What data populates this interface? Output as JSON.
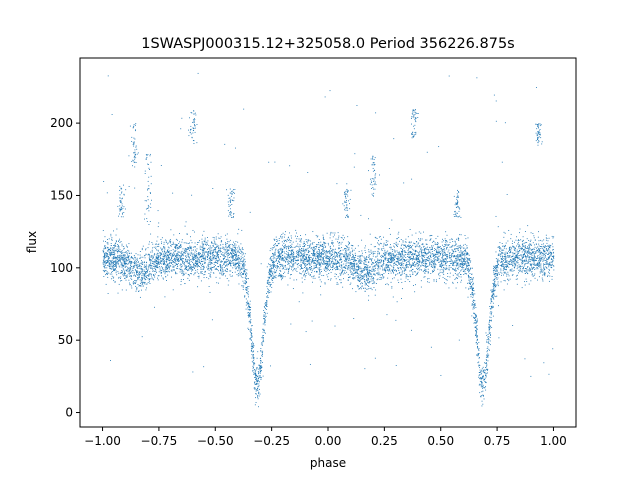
{
  "chart_data": {
    "type": "scatter",
    "title": "1SWASPJ000315.12+325058.0 Period 356226.875s",
    "xlabel": "phase",
    "ylabel": "flux",
    "xlim": [
      -1.1,
      1.1
    ],
    "ylim": [
      -10,
      245
    ],
    "xticks": [
      -1.0,
      -0.75,
      -0.5,
      -0.25,
      0.0,
      0.25,
      0.5,
      0.75,
      1.0
    ],
    "xtick_labels": [
      "−1.00",
      "−0.75",
      "−0.50",
      "−0.25",
      "0.00",
      "0.25",
      "0.50",
      "0.75",
      "1.00"
    ],
    "yticks": [
      0,
      50,
      100,
      150,
      200
    ],
    "ytick_labels": [
      "0",
      "50",
      "100",
      "150",
      "200"
    ],
    "grid": false,
    "marker_color": "#1f77b4",
    "phase_range": [
      -1.0,
      1.0
    ],
    "baseline_flux": 107,
    "baseline_scatter": 7,
    "eclipses": [
      {
        "phase_center": -0.315,
        "min_flux": 20,
        "half_width": 0.05
      },
      {
        "phase_center": 0.685,
        "min_flux": 20,
        "half_width": 0.05
      }
    ],
    "secondary_dips": [
      {
        "phase_center": -0.84,
        "min_flux": 97
      },
      {
        "phase_center": 0.16,
        "min_flux": 97
      }
    ],
    "outlier_streaks": [
      {
        "phase": -0.92,
        "flux_range": [
          135,
          160
        ]
      },
      {
        "phase": -0.86,
        "flux_range": [
          170,
          200
        ]
      },
      {
        "phase": -0.8,
        "flux_range": [
          130,
          180
        ]
      },
      {
        "phase": -0.43,
        "flux_range": [
          135,
          155
        ]
      },
      {
        "phase": -0.6,
        "flux_range": [
          185,
          210
        ]
      },
      {
        "phase": 0.08,
        "flux_range": [
          135,
          155
        ]
      },
      {
        "phase": 0.2,
        "flux_range": [
          150,
          180
        ]
      },
      {
        "phase": 0.38,
        "flux_range": [
          190,
          210
        ]
      },
      {
        "phase": 0.57,
        "flux_range": [
          135,
          155
        ]
      },
      {
        "phase": 0.93,
        "flux_range": [
          185,
          200
        ]
      }
    ]
  }
}
